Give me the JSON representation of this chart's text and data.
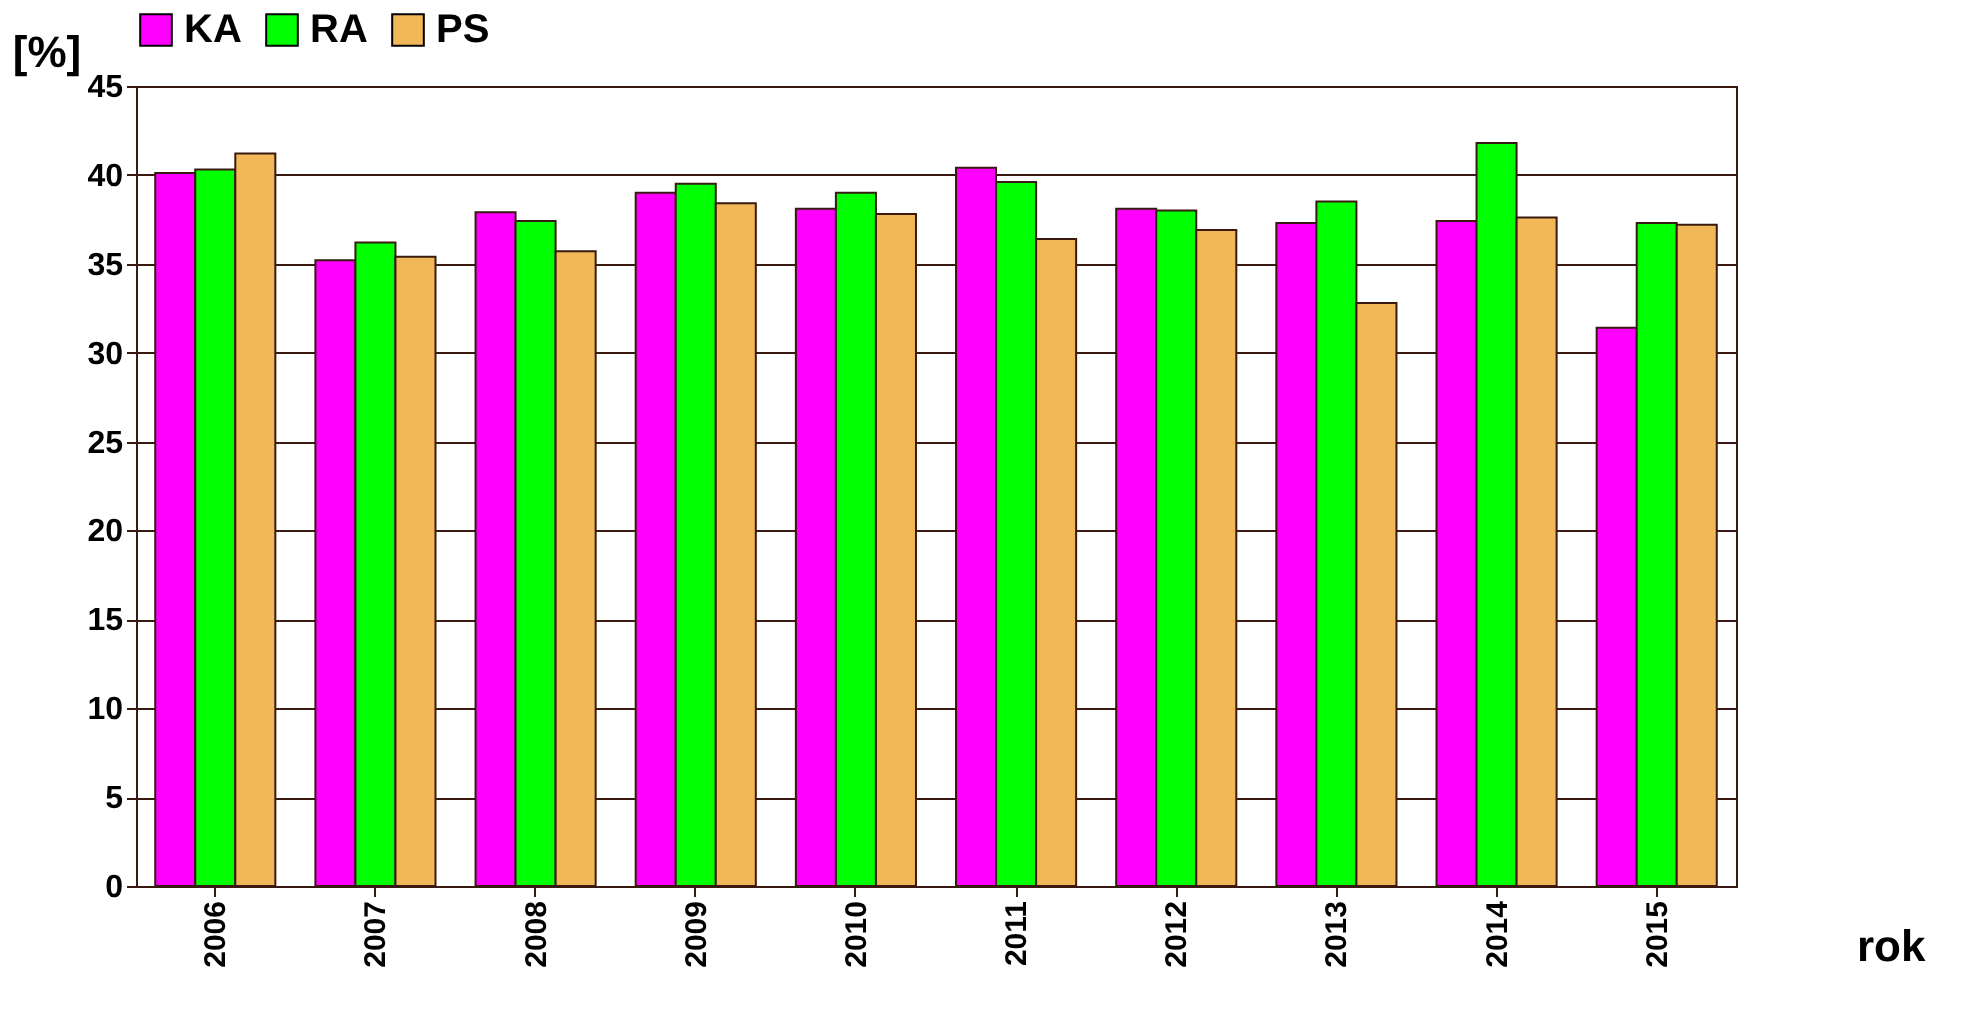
{
  "chart_data": {
    "type": "bar",
    "xlabel": "rok",
    "ylabel": "[%]",
    "categories": [
      "2006",
      "2007",
      "2008",
      "2009",
      "2010",
      "2011",
      "2012",
      "2013",
      "2014",
      "2015"
    ],
    "series": [
      {
        "name": "KA",
        "color": "#ff00ff",
        "values": [
          40.1,
          35.2,
          37.9,
          39.0,
          38.1,
          40.4,
          38.1,
          37.3,
          37.4,
          31.4
        ]
      },
      {
        "name": "RA",
        "color": "#00ff00",
        "values": [
          40.3,
          36.2,
          37.4,
          39.5,
          39.0,
          39.6,
          38.0,
          38.5,
          41.8,
          37.3
        ]
      },
      {
        "name": "PS",
        "color": "#f0b858",
        "values": [
          41.2,
          35.4,
          35.7,
          38.4,
          37.8,
          36.4,
          36.9,
          32.8,
          37.6,
          37.2
        ]
      }
    ],
    "ylim": [
      0,
      45
    ],
    "yticks": [
      0,
      5,
      10,
      15,
      20,
      25,
      30,
      35,
      40,
      45
    ],
    "grid": "y",
    "legend": "top"
  }
}
